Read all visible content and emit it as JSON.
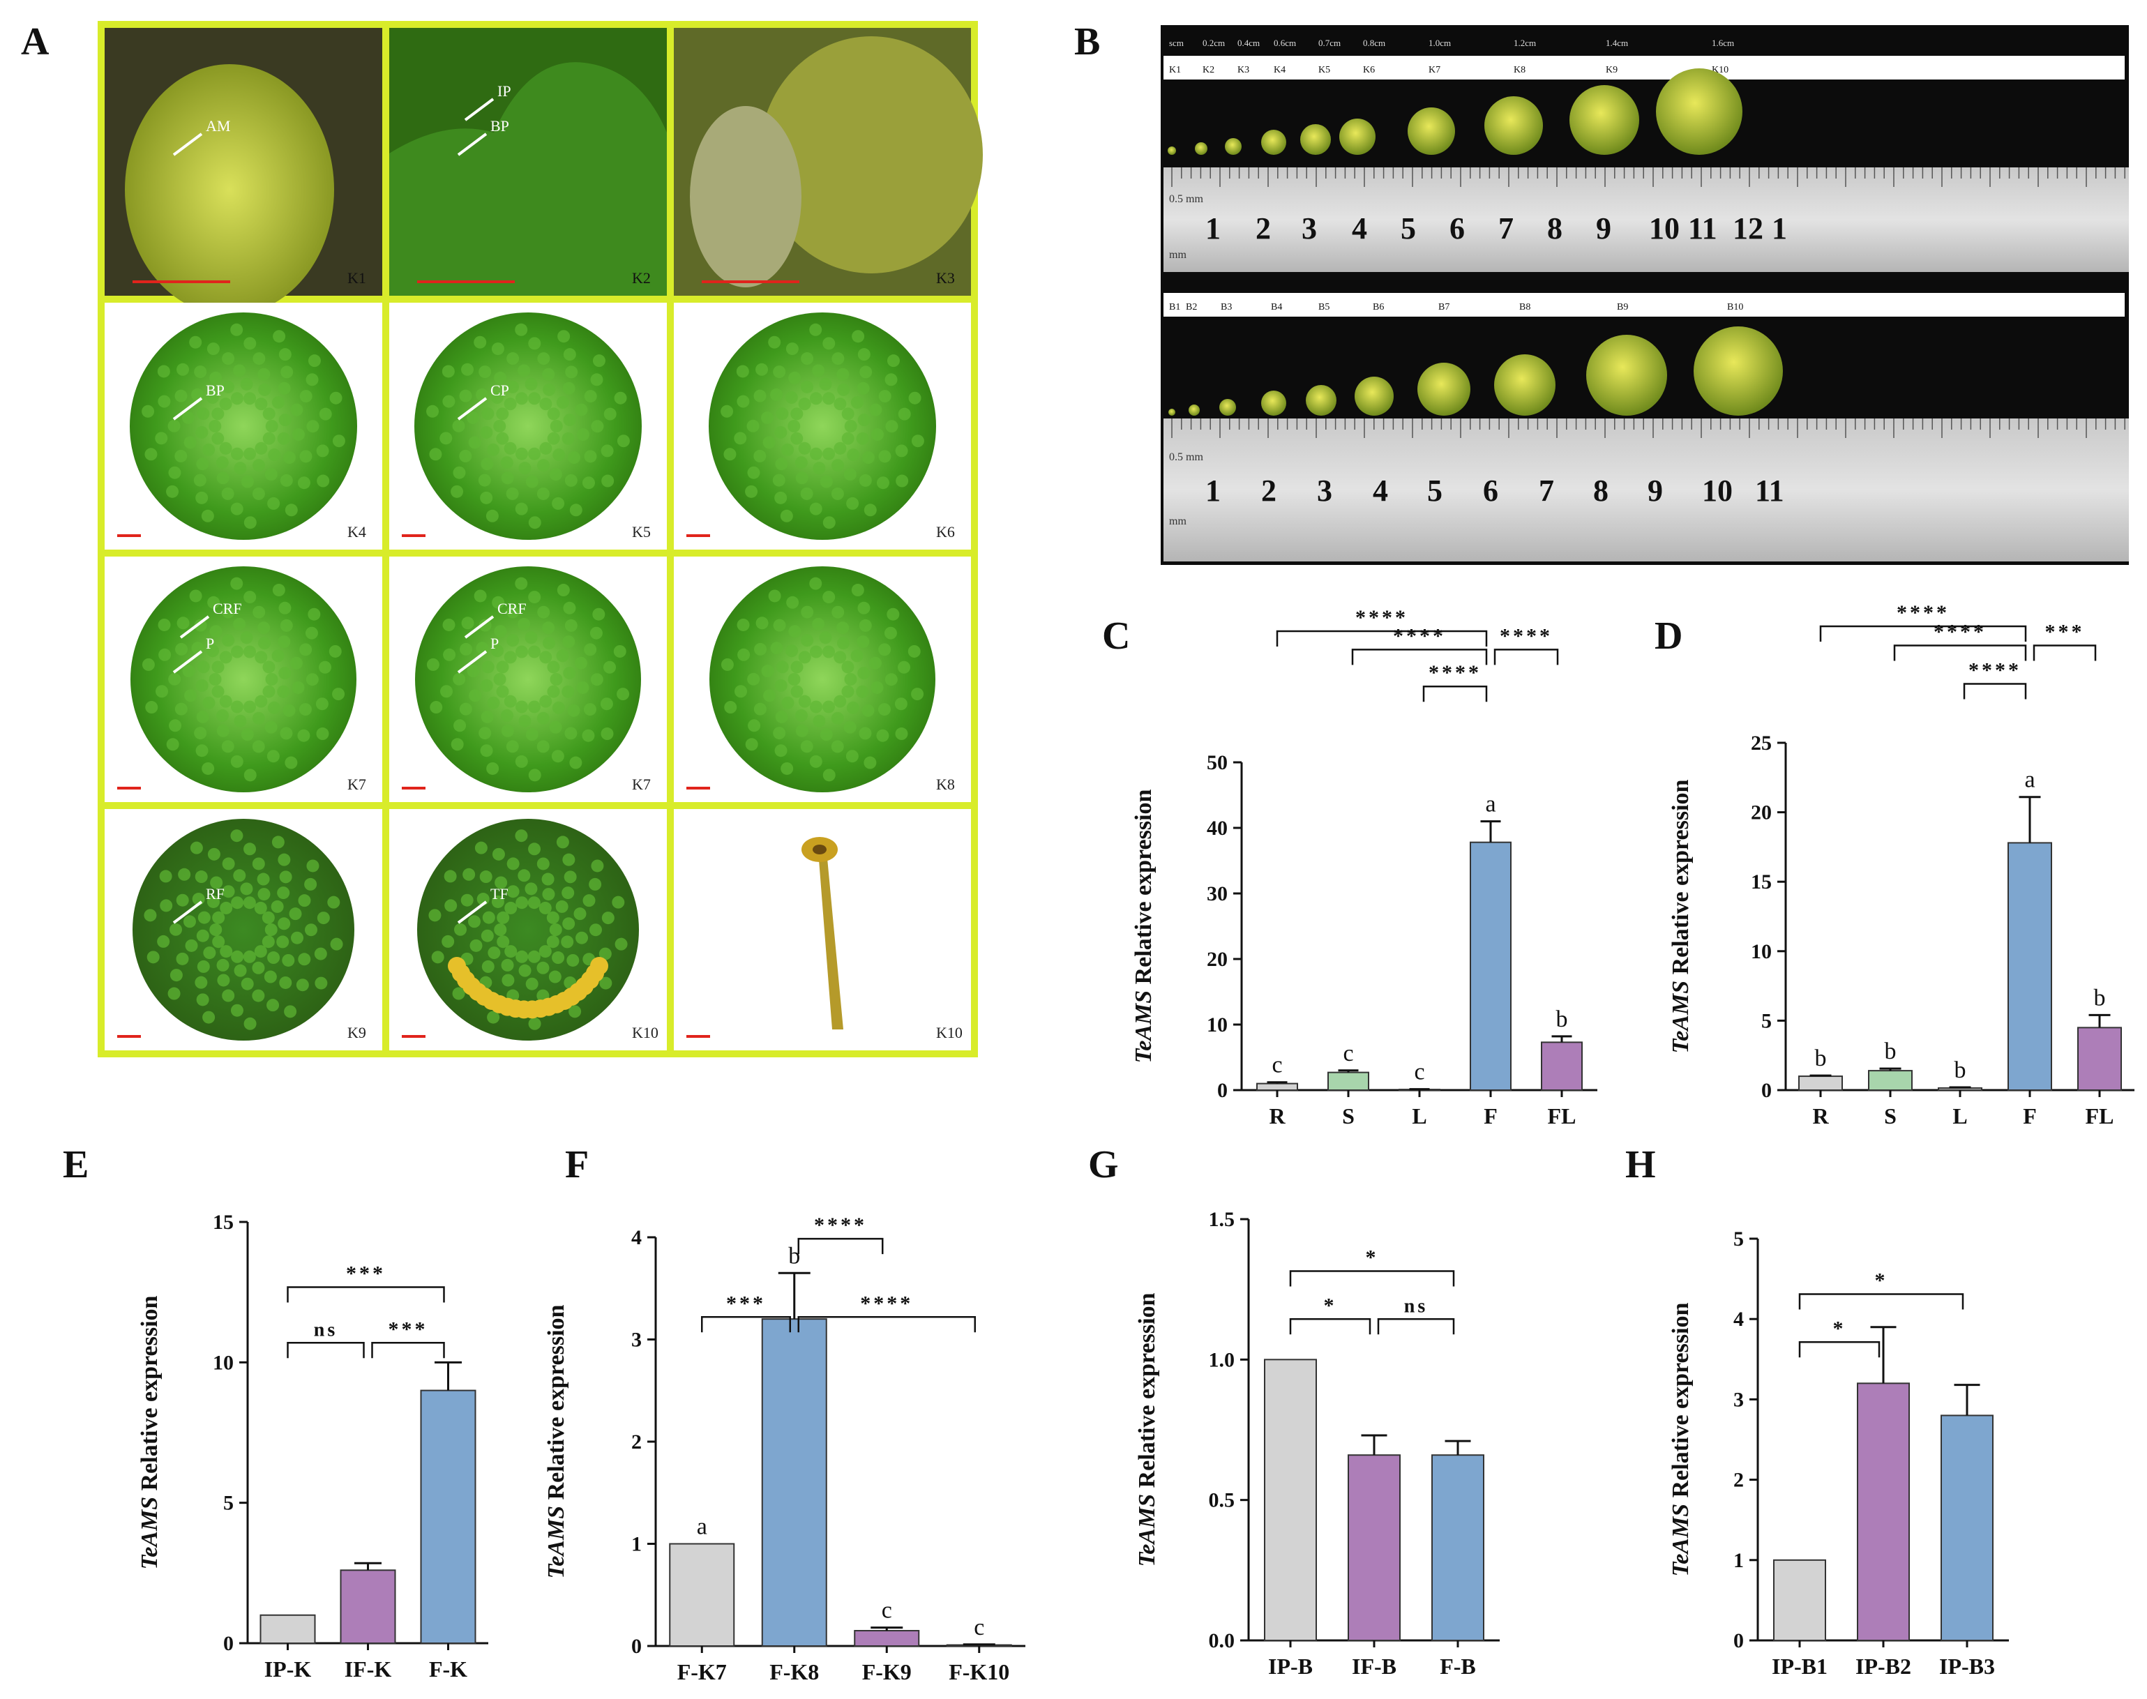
{
  "panel_letters": [
    "A",
    "B",
    "C",
    "D",
    "E",
    "F",
    "G",
    "H"
  ],
  "panelA": {
    "labels": [
      "K1",
      "K2",
      "K3",
      "K4",
      "K5",
      "K6",
      "K7",
      "K7",
      "K8",
      "K9",
      "K10",
      "K10"
    ],
    "annotations": {
      "K1": [
        "AM"
      ],
      "K2": [
        "BP",
        "IP"
      ],
      "K3": [],
      "K4": [
        "BP"
      ],
      "K5": [
        "CP"
      ],
      "K6": [],
      "K7a": [
        "P",
        "CRF"
      ],
      "K7b": [
        "P",
        "CRF"
      ],
      "K8": [],
      "K9": [
        "RF"
      ],
      "K10a": [
        "TF"
      ],
      "K10b": []
    },
    "border_color": "#d8ec2a"
  },
  "panelB": {
    "top_sizes": [
      "scm",
      "0.2cm",
      "0.4cm",
      "0.6cm",
      "0.7cm",
      "0.8cm",
      "1.0cm",
      "1.2cm",
      "1.4cm",
      "1.6cm"
    ],
    "top_labels": [
      "K1",
      "K2",
      "K3",
      "K4",
      "K5",
      "K6",
      "K7",
      "K8",
      "K9",
      "K10"
    ],
    "bottom_labels": [
      "B1",
      "B2",
      "B3",
      "B4",
      "B5",
      "B6",
      "B7",
      "B8",
      "B9",
      "B10"
    ],
    "ruler_top": [
      "1",
      "2",
      "3",
      "4",
      "5",
      "6",
      "7",
      "8",
      "9",
      "10",
      "11",
      "12",
      "1"
    ],
    "ruler_bottom": [
      "1",
      "2",
      "3",
      "4",
      "5",
      "6",
      "7",
      "8",
      "9",
      "10",
      "11"
    ],
    "ruler_mm": "0.5 mm",
    "ruler_mm2": "mm"
  },
  "chart_data": [
    {
      "panel": "C",
      "type": "bar",
      "ylabel_italic": "TeAMS",
      "ylabel_rest": " Relative expression",
      "categories": [
        "R",
        "S",
        "L",
        "F",
        "FL"
      ],
      "values": [
        1.0,
        2.7,
        0.1,
        37.8,
        7.3
      ],
      "errors": [
        0.2,
        0.3,
        0.05,
        3.2,
        0.9
      ],
      "letters": [
        "c",
        "c",
        "c",
        "a",
        "b"
      ],
      "ylim": [
        0,
        50
      ],
      "yticks": [
        0,
        10,
        20,
        30,
        40,
        50
      ],
      "colors": [
        "#d3d3d3",
        "#a8d5ac",
        "#d3d3d3",
        "#7ea6cf",
        "#ad7eb8"
      ],
      "brackets": [
        {
          "from": 3,
          "to": 0,
          "text": "****",
          "level": 4
        },
        {
          "from": 1,
          "to": 3,
          "text": "****",
          "level": 3
        },
        {
          "from": 3,
          "to": 4,
          "text": "****",
          "level": 3
        },
        {
          "from": 2,
          "to": 3,
          "text": "****",
          "level": 1
        }
      ]
    },
    {
      "panel": "D",
      "type": "bar",
      "ylabel_italic": "TeAMS",
      "ylabel_rest": " Relative expression",
      "categories": [
        "R",
        "S",
        "L",
        "F",
        "FL"
      ],
      "values": [
        1.0,
        1.4,
        0.15,
        17.8,
        4.5
      ],
      "errors": [
        0.05,
        0.15,
        0.05,
        3.3,
        0.9
      ],
      "letters": [
        "b",
        "b",
        "b",
        "a",
        "b"
      ],
      "ylim": [
        0,
        25
      ],
      "yticks": [
        0,
        5,
        10,
        15,
        20,
        25
      ],
      "colors": [
        "#d3d3d3",
        "#a8d5ac",
        "#d3d3d3",
        "#7ea6cf",
        "#ad7eb8"
      ],
      "brackets": [
        {
          "from": 0,
          "to": 3,
          "text": "****",
          "level": 4
        },
        {
          "from": 1,
          "to": 3,
          "text": "****",
          "level": 3
        },
        {
          "from": 3,
          "to": 4,
          "text": "***",
          "level": 3
        },
        {
          "from": 2,
          "to": 3,
          "text": "****",
          "level": 1
        }
      ]
    },
    {
      "panel": "E",
      "type": "bar",
      "ylabel_italic": "TeAMS",
      "ylabel_rest": " Relative expression",
      "categories": [
        "IP-K",
        "IF-K",
        "F-K"
      ],
      "values": [
        1.0,
        2.6,
        9.0
      ],
      "errors": [
        0,
        0.25,
        1.0
      ],
      "letters": [
        "",
        "",
        ""
      ],
      "ylim": [
        0,
        15
      ],
      "yticks": [
        0,
        5,
        10,
        15
      ],
      "colors": [
        "#d3d3d3",
        "#ad7eb8",
        "#7ea6cf"
      ],
      "brackets": [
        {
          "from": 0,
          "to": 2,
          "text": "***",
          "level": 2
        },
        {
          "from": 0,
          "to": 1,
          "text": "ns",
          "level": 1
        },
        {
          "from": 1,
          "to": 2,
          "text": "***",
          "level": 1
        }
      ]
    },
    {
      "panel": "F",
      "type": "bar",
      "ylabel_italic": "TeAMS",
      "ylabel_rest": " Relative expression",
      "categories": [
        "F-K7",
        "F-K8",
        "F-K9",
        "F-K10"
      ],
      "values": [
        1.0,
        3.2,
        0.15,
        0.01
      ],
      "errors": [
        0,
        0.45,
        0.03,
        0.005
      ],
      "letters": [
        "a",
        "b",
        "c",
        "c"
      ],
      "ylim": [
        0,
        4
      ],
      "yticks": [
        0,
        1,
        2,
        3,
        4
      ],
      "colors": [
        "#d3d3d3",
        "#7ea6cf",
        "#ad7eb8",
        "#ad7eb8"
      ],
      "brackets": [
        {
          "from": 0,
          "to": 1,
          "text": "***",
          "level": 1
        },
        {
          "from": 1,
          "to": 3,
          "text": "****",
          "level": 1
        },
        {
          "from": 1,
          "to": 2,
          "text": "****",
          "level": 3
        }
      ]
    },
    {
      "panel": "G",
      "type": "bar",
      "ylabel_italic": "TeAMS",
      "ylabel_rest": " Relative expression",
      "categories": [
        "IP-B",
        "IF-B",
        "F-B"
      ],
      "values": [
        1.0,
        0.66,
        0.66
      ],
      "errors": [
        0,
        0.07,
        0.05
      ],
      "letters": [
        "",
        "",
        ""
      ],
      "ylim": [
        0,
        1.5
      ],
      "yticks": [
        "0.0",
        "0.5",
        "1.0",
        "1.5"
      ],
      "colors": [
        "#d3d3d3",
        "#ad7eb8",
        "#7ea6cf"
      ],
      "brackets": [
        {
          "from": 0,
          "to": 2,
          "text": "*",
          "level": 2
        },
        {
          "from": 0,
          "to": 1,
          "text": "*",
          "level": 1
        },
        {
          "from": 1,
          "to": 2,
          "text": "ns",
          "level": 1
        }
      ]
    },
    {
      "panel": "H",
      "type": "bar",
      "ylabel_italic": "TeAMS",
      "ylabel_rest": " Relative expression",
      "categories": [
        "IP-B1",
        "IP-B2",
        "IP-B3"
      ],
      "values": [
        1.0,
        3.2,
        2.8
      ],
      "errors": [
        0,
        0.7,
        0.38
      ],
      "letters": [
        "",
        "",
        ""
      ],
      "ylim": [
        0,
        5
      ],
      "yticks": [
        0,
        1,
        2,
        3,
        4,
        5
      ],
      "colors": [
        "#d3d3d3",
        "#ad7eb8",
        "#7ea6cf"
      ],
      "brackets": [
        {
          "from": 0,
          "to": 2,
          "text": "*",
          "level": 2
        },
        {
          "from": 0,
          "to": 1,
          "text": "*",
          "level": 1
        }
      ]
    }
  ]
}
